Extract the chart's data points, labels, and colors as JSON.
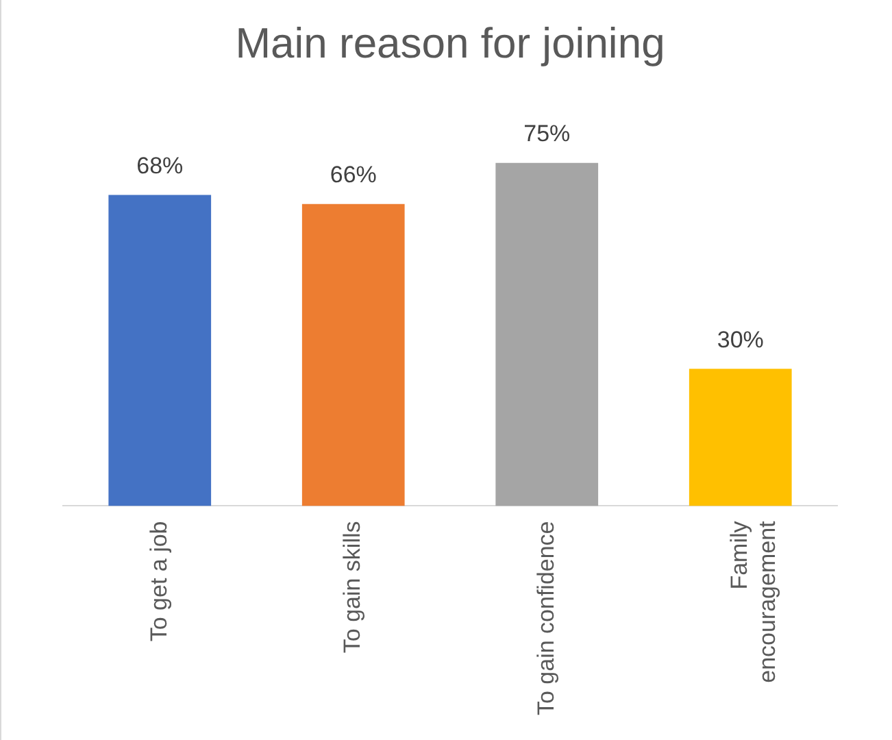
{
  "chart_data": {
    "type": "bar",
    "title": "Main reason for joining",
    "categories": [
      "To get a job",
      "To gain skills",
      "To gain confidence",
      "Family encouragement"
    ],
    "values": [
      68,
      66,
      75,
      30
    ],
    "colors": [
      "#4472c4",
      "#ed7d31",
      "#a5a5a5",
      "#ffc000"
    ],
    "value_labels": [
      "68%",
      "66%",
      "75%",
      "30%"
    ],
    "grid": false,
    "legend": false
  }
}
